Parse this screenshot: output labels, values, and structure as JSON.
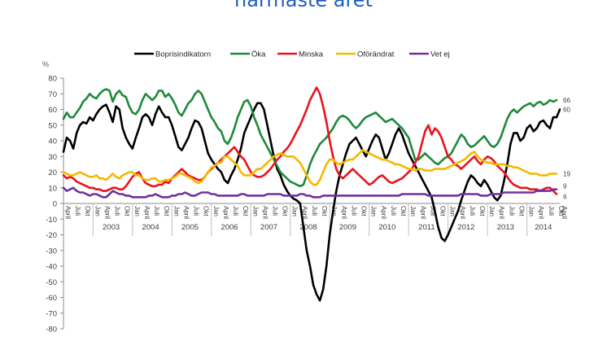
{
  "page": {
    "title": "närmaste året"
  },
  "chart_data": {
    "type": "line",
    "unit": "%",
    "ylim": [
      -80,
      80
    ],
    "yticks": [
      80,
      70,
      60,
      50,
      40,
      30,
      20,
      10,
      0,
      -10,
      -20,
      -30,
      -40,
      -50,
      -60,
      -70,
      -80
    ],
    "month_labels": [
      "April",
      "Juli",
      "Okt",
      "Jan"
    ],
    "years": [
      "2003",
      "2004",
      "2005",
      "2006",
      "2007",
      "2008",
      "2009",
      "2010",
      "2011",
      "2012",
      "2013",
      "2014"
    ],
    "last_month_label": "April",
    "x_start": "2002-04",
    "grid": false,
    "legend": "top",
    "series": [
      {
        "name": "Boprisindikatorn",
        "color": "#000000",
        "end_label": "60",
        "values": [
          33,
          42,
          40,
          35,
          45,
          50,
          52,
          51,
          55,
          53,
          57,
          60,
          62,
          63,
          58,
          52,
          62,
          60,
          48,
          42,
          38,
          35,
          42,
          48,
          55,
          57,
          55,
          50,
          57,
          62,
          58,
          55,
          55,
          50,
          43,
          36,
          34,
          38,
          42,
          48,
          53,
          52,
          48,
          40,
          32,
          28,
          25,
          22,
          20,
          15,
          13,
          18,
          22,
          28,
          35,
          45,
          50,
          55,
          60,
          64,
          64,
          60,
          50,
          40,
          30,
          22,
          18,
          12,
          8,
          5,
          3,
          2,
          0,
          -15,
          -30,
          -40,
          -52,
          -58,
          -62,
          -55,
          -40,
          -20,
          -5,
          8,
          18,
          25,
          32,
          38,
          40,
          42,
          38,
          34,
          30,
          35,
          40,
          44,
          42,
          35,
          28,
          32,
          38,
          44,
          48,
          44,
          38,
          32,
          28,
          24,
          20,
          16,
          12,
          8,
          4,
          -5,
          -15,
          -22,
          -24,
          -20,
          -15,
          -10,
          -5,
          2,
          8,
          14,
          18,
          16,
          13,
          11,
          15,
          12,
          8,
          4,
          2,
          5,
          14,
          25,
          38,
          45,
          45,
          40,
          42,
          48,
          50,
          46,
          48,
          52,
          53,
          50,
          48,
          55,
          55,
          60
        ]
      },
      {
        "name": "Öka",
        "color": "#1e8a3a",
        "end_label": "66",
        "values": [
          54,
          58,
          55,
          55,
          58,
          61,
          65,
          67,
          70,
          68,
          67,
          70,
          72,
          73,
          72,
          65,
          70,
          72,
          69,
          68,
          62,
          58,
          57,
          60,
          66,
          70,
          68,
          66,
          68,
          72,
          72,
          68,
          70,
          67,
          63,
          58,
          56,
          60,
          64,
          66,
          70,
          72,
          70,
          65,
          60,
          55,
          52,
          48,
          46,
          40,
          38,
          42,
          48,
          55,
          60,
          65,
          66,
          62,
          55,
          50,
          44,
          40,
          36,
          32,
          28,
          24,
          20,
          18,
          16,
          14,
          13,
          12,
          11,
          12,
          18,
          25,
          30,
          34,
          38,
          40,
          42,
          45,
          48,
          52,
          55,
          56,
          55,
          53,
          50,
          48,
          50,
          53,
          55,
          56,
          57,
          58,
          56,
          54,
          52,
          53,
          54,
          52,
          50,
          48,
          45,
          42,
          35,
          28,
          28,
          30,
          32,
          30,
          28,
          26,
          25,
          27,
          29,
          30,
          32,
          36,
          40,
          44,
          42,
          38,
          36,
          37,
          39,
          41,
          43,
          40,
          37,
          36,
          38,
          42,
          48,
          54,
          58,
          60,
          58,
          60,
          62,
          63,
          64,
          62,
          64,
          65,
          63,
          64,
          66,
          65,
          66
        ]
      },
      {
        "name": "Minska",
        "color": "#e8141c",
        "end_label": "6",
        "values": [
          18,
          16,
          17,
          16,
          14,
          13,
          12,
          11,
          10,
          10,
          9,
          9,
          8,
          8,
          9,
          10,
          10,
          9,
          9,
          11,
          14,
          17,
          19,
          20,
          16,
          13,
          12,
          11,
          11,
          12,
          12,
          14,
          13,
          16,
          18,
          20,
          22,
          20,
          18,
          17,
          16,
          15,
          15,
          17,
          20,
          22,
          24,
          26,
          28,
          30,
          32,
          34,
          36,
          33,
          30,
          28,
          24,
          20,
          18,
          17,
          17,
          18,
          20,
          22,
          25,
          28,
          30,
          33,
          35,
          38,
          42,
          46,
          50,
          55,
          60,
          66,
          70,
          74,
          70,
          62,
          52,
          40,
          30,
          22,
          18,
          16,
          18,
          20,
          22,
          20,
          18,
          16,
          14,
          12,
          13,
          15,
          17,
          18,
          16,
          14,
          13,
          14,
          15,
          16,
          18,
          20,
          22,
          26,
          30,
          38,
          46,
          50,
          44,
          48,
          46,
          42,
          36,
          30,
          28,
          25,
          24,
          22,
          24,
          26,
          28,
          30,
          27,
          25,
          28,
          30,
          29,
          27,
          24,
          22,
          20,
          17,
          14,
          12,
          11,
          10,
          10,
          10,
          9,
          9,
          9,
          8,
          9,
          10,
          10,
          8,
          6
        ]
      },
      {
        "name": "Oförändrat",
        "color": "#f5b800",
        "end_label": "19",
        "values": [
          20,
          19,
          18,
          18,
          19,
          20,
          19,
          18,
          17,
          17,
          18,
          16,
          16,
          15,
          17,
          19,
          17,
          16,
          18,
          19,
          20,
          20,
          18,
          18,
          16,
          15,
          15,
          16,
          16,
          14,
          14,
          15,
          15,
          16,
          17,
          19,
          19,
          18,
          17,
          16,
          14,
          13,
          14,
          17,
          20,
          23,
          24,
          26,
          26,
          30,
          30,
          28,
          26,
          24,
          20,
          18,
          18,
          18,
          20,
          22,
          22,
          24,
          26,
          28,
          30,
          31,
          32,
          31,
          30,
          30,
          30,
          28,
          26,
          22,
          18,
          14,
          12,
          12,
          15,
          20,
          25,
          28,
          28,
          26,
          25,
          26,
          27,
          28,
          28,
          30,
          32,
          34,
          33,
          32,
          31,
          30,
          29,
          28,
          28,
          27,
          26,
          25,
          25,
          24,
          23,
          22,
          22,
          21,
          22,
          22,
          21,
          21,
          21,
          22,
          22,
          22,
          22,
          23,
          24,
          25,
          26,
          27,
          28,
          30,
          32,
          33,
          30,
          28,
          27,
          26,
          26,
          25,
          25,
          25,
          25,
          24,
          24,
          23,
          23,
          22,
          21,
          20,
          19,
          19,
          19,
          18,
          18,
          18,
          19,
          19,
          19
        ]
      },
      {
        "name": "Vet ej",
        "color": "#7030a0",
        "end_label": "9",
        "values": [
          10,
          8,
          9,
          10,
          8,
          7,
          7,
          6,
          5,
          6,
          6,
          5,
          4,
          4,
          6,
          8,
          7,
          6,
          6,
          5,
          5,
          4,
          4,
          4,
          4,
          4,
          5,
          5,
          6,
          5,
          4,
          4,
          4,
          5,
          5,
          6,
          6,
          7,
          6,
          5,
          5,
          6,
          7,
          7,
          7,
          6,
          6,
          5,
          5,
          5,
          5,
          5,
          5,
          5,
          6,
          6,
          5,
          5,
          5,
          5,
          5,
          5,
          6,
          6,
          6,
          6,
          6,
          5,
          5,
          5,
          5,
          5,
          6,
          6,
          5,
          5,
          4,
          4,
          4,
          5,
          5,
          5,
          5,
          5,
          5,
          5,
          5,
          5,
          5,
          5,
          5,
          5,
          5,
          5,
          5,
          5,
          5,
          5,
          5,
          5,
          5,
          5,
          5,
          6,
          6,
          6,
          6,
          6,
          6,
          6,
          6,
          5,
          5,
          5,
          5,
          5,
          5,
          5,
          5,
          5,
          5,
          6,
          6,
          6,
          6,
          6,
          6,
          5,
          5,
          5,
          6,
          6,
          6,
          6,
          7,
          7,
          7,
          7,
          7,
          7,
          7,
          7,
          7,
          7,
          8,
          8,
          8,
          8,
          8,
          9,
          9
        ]
      }
    ]
  }
}
